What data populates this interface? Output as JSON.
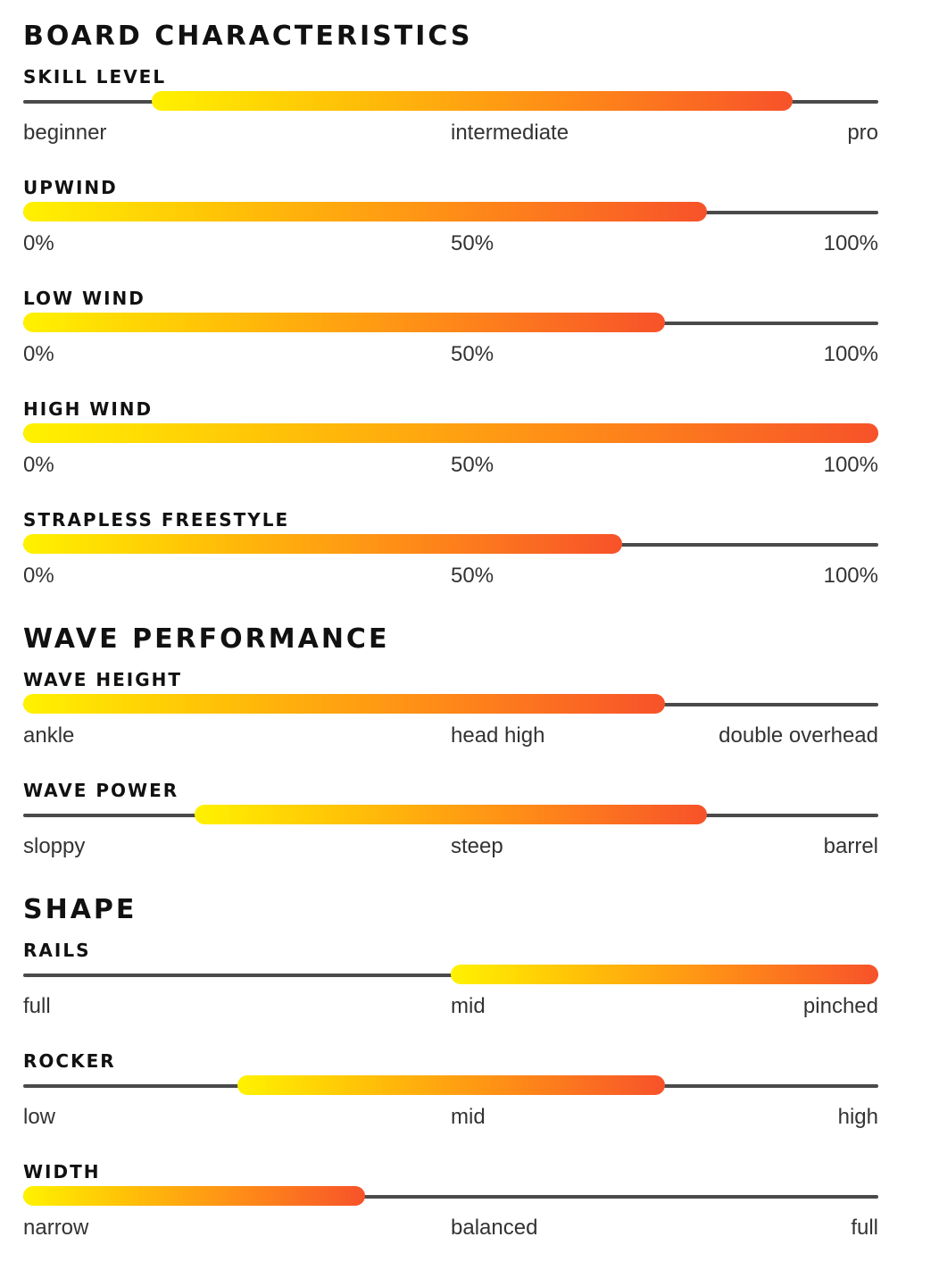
{
  "colors": {
    "heading": "#111111",
    "label": "#333333",
    "track": "#4a4a4a",
    "gradient_start": "#fff200",
    "gradient_end": "#f7522a"
  },
  "sections": [
    {
      "title": "BOARD CHARACTERISTICS",
      "metrics": [
        {
          "title": "SKILL LEVEL",
          "range": [
            0.15,
            0.9
          ],
          "labels": [
            "beginner",
            "intermediate",
            "pro"
          ]
        },
        {
          "title": "UPWIND",
          "range": [
            0,
            0.8
          ],
          "labels": [
            "0%",
            "50%",
            "100%"
          ]
        },
        {
          "title": "LOW WIND",
          "range": [
            0,
            0.75
          ],
          "labels": [
            "0%",
            "50%",
            "100%"
          ]
        },
        {
          "title": "HIGH WIND",
          "range": [
            0,
            1.0
          ],
          "labels": [
            "0%",
            "50%",
            "100%"
          ]
        },
        {
          "title": "STRAPLESS FREESTYLE",
          "range": [
            0,
            0.7
          ],
          "labels": [
            "0%",
            "50%",
            "100%"
          ]
        }
      ]
    },
    {
      "title": "WAVE PERFORMANCE",
      "metrics": [
        {
          "title": "WAVE HEIGHT",
          "range": [
            0,
            0.75
          ],
          "labels": [
            "ankle",
            "head high",
            "double overhead"
          ]
        },
        {
          "title": "WAVE POWER",
          "range": [
            0.2,
            0.8
          ],
          "labels": [
            "sloppy",
            "steep",
            "barrel"
          ]
        }
      ]
    },
    {
      "title": "SHAPE",
      "metrics": [
        {
          "title": "RAILS",
          "range": [
            0.5,
            1.0
          ],
          "labels": [
            "full",
            "mid",
            "pinched"
          ]
        },
        {
          "title": "ROCKER",
          "range": [
            0.25,
            0.75
          ],
          "labels": [
            "low",
            "mid",
            "high"
          ]
        },
        {
          "title": "WIDTH",
          "range": [
            0,
            0.4
          ],
          "labels": [
            "narrow",
            "balanced",
            "full"
          ]
        }
      ]
    }
  ]
}
